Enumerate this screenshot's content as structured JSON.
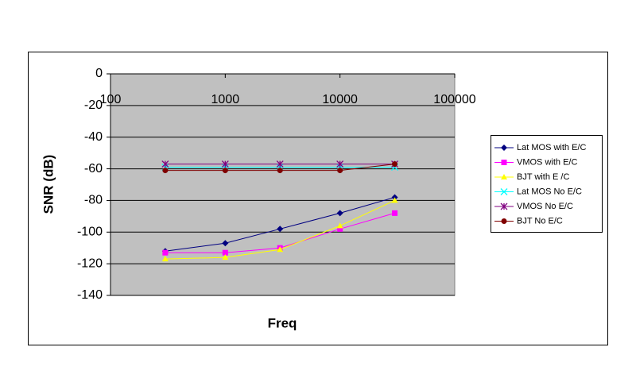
{
  "chart_data": {
    "type": "line",
    "x_label": "Freq",
    "y_label": "SNR (dB)",
    "x": [
      300,
      1000,
      3000,
      10000,
      30000
    ],
    "xlim": [
      100,
      100000
    ],
    "xticks": [
      100,
      1000,
      10000,
      100000
    ],
    "x_log": true,
    "ylim": [
      -140,
      0
    ],
    "yticks": [
      0,
      -20,
      -40,
      -60,
      -80,
      -100,
      -120,
      -140
    ],
    "grid": true,
    "legend": "right",
    "series": [
      {
        "name": "Lat MOS with E/C",
        "color": "#000080",
        "marker": "diamond",
        "values": [
          -112,
          -107,
          -98,
          -88,
          -78
        ]
      },
      {
        "name": "VMOS with E/C",
        "color": "#ff00ff",
        "marker": "square",
        "values": [
          -113,
          -113,
          -110,
          -98,
          -88
        ]
      },
      {
        "name": "BJT with E /C",
        "color": "#ffff00",
        "marker": "triangle",
        "values": [
          -117,
          -116,
          -111,
          -96,
          -80
        ]
      },
      {
        "name": "Lat MOS No E/C",
        "color": "#00ffff",
        "marker": "x",
        "values": [
          -59,
          -59,
          -59,
          -59,
          -59
        ]
      },
      {
        "name": "VMOS No E/C",
        "color": "#800080",
        "marker": "star",
        "values": [
          -57,
          -57,
          -57,
          -57,
          -57
        ]
      },
      {
        "name": "BJT No E/C",
        "color": "#800000",
        "marker": "circle",
        "values": [
          -61,
          -61,
          -61,
          -61,
          -57
        ]
      }
    ]
  }
}
